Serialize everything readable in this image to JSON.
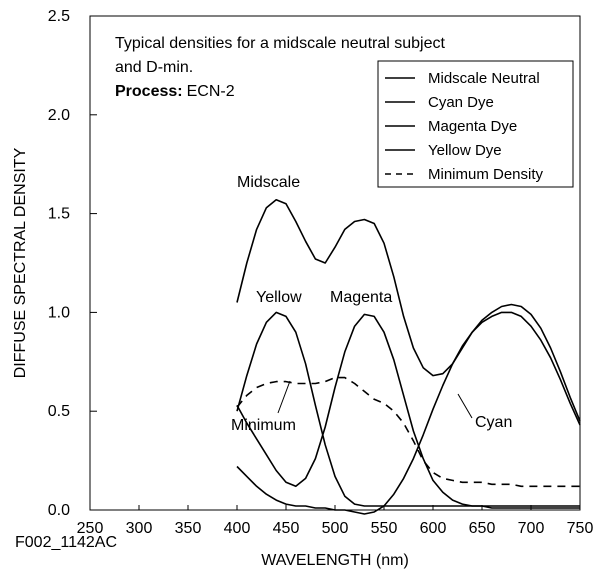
{
  "chart_data": {
    "type": "line",
    "xlabel": "WAVELENGTH (nm)",
    "ylabel": "DIFFUSE SPECTRAL DENSITY",
    "xlim": [
      250,
      750
    ],
    "ylim": [
      0,
      2.5
    ],
    "x_ticks": [
      "250",
      "300",
      "350",
      "400",
      "450",
      "500",
      "550",
      "600",
      "650",
      "700",
      "750"
    ],
    "y_ticks": [
      "0.0",
      "0.5",
      "1.0",
      "1.5",
      "2.0",
      "2.5"
    ],
    "grid": false,
    "legend_position": "top-right",
    "note_line1": "Typical densities for a midscale neutral subject",
    "note_line2": "and D-min.",
    "process_label": "Process:",
    "process_value": "ECN-2",
    "figure_code": "F002_1142AC",
    "annotations": [
      "Midscale",
      "Yellow",
      "Magenta",
      "Minimum",
      "Cyan"
    ],
    "series": [
      {
        "name": "Midscale Neutral",
        "style": "solid",
        "x": [
          400,
          410,
          420,
          430,
          440,
          450,
          460,
          470,
          480,
          490,
          500,
          510,
          520,
          530,
          540,
          550,
          560,
          570,
          580,
          590,
          600,
          610,
          620,
          630,
          640,
          650,
          660,
          670,
          680,
          690,
          700,
          710,
          720,
          730,
          740,
          750
        ],
        "y": [
          1.05,
          1.25,
          1.42,
          1.53,
          1.57,
          1.55,
          1.46,
          1.36,
          1.27,
          1.25,
          1.33,
          1.42,
          1.46,
          1.47,
          1.45,
          1.35,
          1.18,
          0.98,
          0.82,
          0.72,
          0.68,
          0.69,
          0.74,
          0.82,
          0.9,
          0.96,
          1.0,
          1.03,
          1.04,
          1.03,
          0.99,
          0.92,
          0.82,
          0.7,
          0.57,
          0.45
        ]
      },
      {
        "name": "Cyan Dye",
        "style": "solid",
        "x": [
          400,
          410,
          420,
          430,
          440,
          450,
          460,
          470,
          480,
          490,
          500,
          510,
          520,
          530,
          540,
          550,
          560,
          570,
          580,
          590,
          600,
          610,
          620,
          630,
          640,
          650,
          660,
          670,
          680,
          690,
          700,
          710,
          720,
          730,
          740,
          750
        ],
        "y": [
          0.22,
          0.17,
          0.12,
          0.08,
          0.05,
          0.03,
          0.02,
          0.02,
          0.01,
          0.01,
          0.0,
          0.0,
          -0.01,
          -0.02,
          -0.01,
          0.02,
          0.08,
          0.16,
          0.26,
          0.38,
          0.51,
          0.63,
          0.74,
          0.83,
          0.9,
          0.95,
          0.98,
          1.0,
          1.0,
          0.98,
          0.93,
          0.86,
          0.77,
          0.66,
          0.54,
          0.43
        ]
      },
      {
        "name": "Magenta Dye",
        "style": "solid",
        "x": [
          400,
          410,
          420,
          430,
          440,
          450,
          460,
          470,
          480,
          490,
          500,
          510,
          520,
          530,
          540,
          550,
          560,
          570,
          580,
          590,
          600,
          610,
          620,
          630,
          640,
          650,
          660,
          670,
          680,
          690,
          700,
          710,
          720,
          730,
          740,
          750
        ],
        "y": [
          0.53,
          0.44,
          0.36,
          0.28,
          0.2,
          0.14,
          0.12,
          0.16,
          0.26,
          0.42,
          0.62,
          0.8,
          0.93,
          0.99,
          0.98,
          0.9,
          0.76,
          0.58,
          0.4,
          0.26,
          0.15,
          0.09,
          0.05,
          0.03,
          0.02,
          0.02,
          0.01,
          0.01,
          0.01,
          0.01,
          0.01,
          0.01,
          0.01,
          0.01,
          0.01,
          0.01
        ]
      },
      {
        "name": "Yellow Dye",
        "style": "solid",
        "x": [
          400,
          410,
          420,
          430,
          440,
          450,
          460,
          470,
          480,
          490,
          500,
          510,
          520,
          530,
          540,
          550,
          560,
          570,
          580,
          590,
          600,
          610,
          620,
          630,
          640,
          650,
          660,
          670,
          680,
          690,
          700,
          710,
          720,
          730,
          740,
          750
        ],
        "y": [
          0.5,
          0.68,
          0.84,
          0.95,
          1.0,
          0.98,
          0.9,
          0.74,
          0.53,
          0.33,
          0.17,
          0.07,
          0.03,
          0.02,
          0.02,
          0.02,
          0.02,
          0.02,
          0.02,
          0.02,
          0.02,
          0.02,
          0.02,
          0.02,
          0.02,
          0.02,
          0.02,
          0.02,
          0.02,
          0.02,
          0.02,
          0.02,
          0.02,
          0.02,
          0.02,
          0.02
        ]
      },
      {
        "name": "Minimum Density",
        "style": "dashed",
        "x": [
          400,
          410,
          420,
          430,
          440,
          450,
          460,
          470,
          480,
          490,
          500,
          510,
          520,
          530,
          540,
          550,
          560,
          570,
          580,
          590,
          600,
          610,
          620,
          630,
          640,
          650,
          660,
          670,
          680,
          690,
          700,
          710,
          720,
          730,
          740,
          750
        ],
        "y": [
          0.52,
          0.58,
          0.62,
          0.64,
          0.65,
          0.65,
          0.64,
          0.64,
          0.64,
          0.65,
          0.67,
          0.67,
          0.64,
          0.6,
          0.56,
          0.54,
          0.5,
          0.44,
          0.35,
          0.25,
          0.19,
          0.16,
          0.15,
          0.14,
          0.14,
          0.14,
          0.13,
          0.13,
          0.13,
          0.12,
          0.12,
          0.12,
          0.12,
          0.12,
          0.12,
          0.12
        ]
      }
    ]
  }
}
